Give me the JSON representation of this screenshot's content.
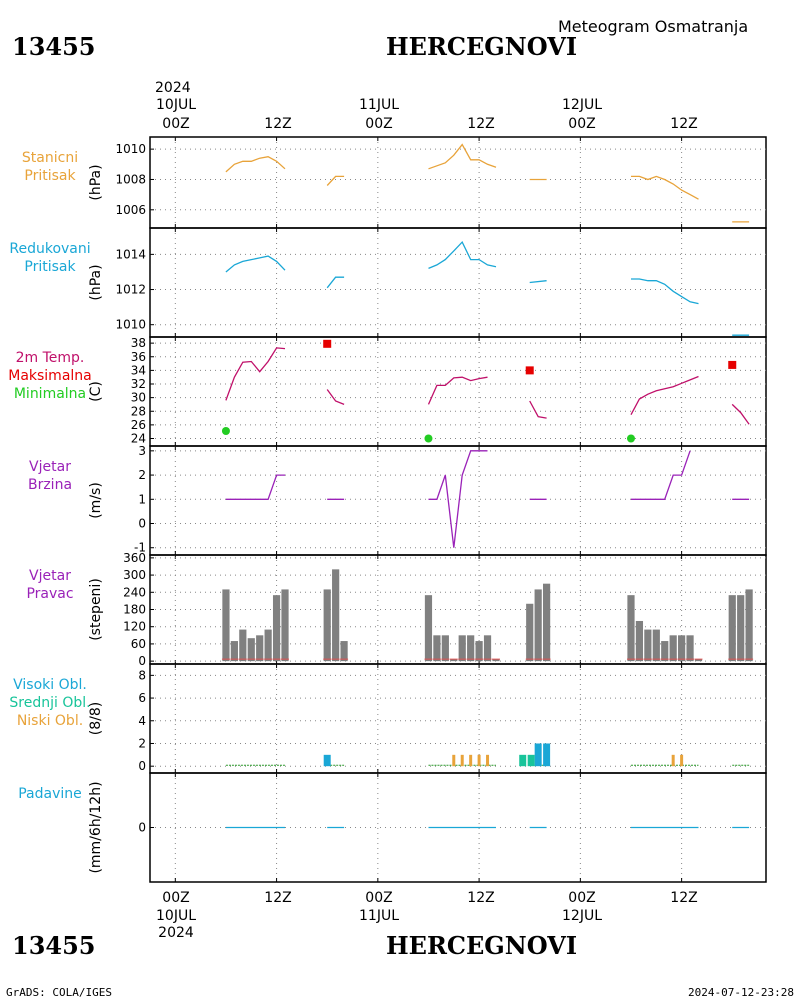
{
  "header": {
    "station_id": "13455",
    "station_name": "HERCEGNOVI",
    "subtitle": "Meteogram Osmatranja"
  },
  "time_axis": {
    "top": {
      "year": "2024",
      "dates": [
        "10JUL",
        "11JUL",
        "12JUL"
      ],
      "hours": [
        "00Z",
        "12Z",
        "00Z",
        "12Z",
        "00Z",
        "12Z"
      ]
    },
    "bottom": {
      "year": "2024",
      "dates": [
        "10JUL",
        "11JUL",
        "12JUL"
      ],
      "hours": [
        "00Z",
        "12Z",
        "00Z",
        "12Z",
        "00Z",
        "12Z"
      ]
    }
  },
  "footer": {
    "credit": "GrADS: COLA/IGES",
    "timestamp": "2024-07-12-23:28"
  },
  "colors": {
    "station_pressure": "#e8a33a",
    "reduced_pressure": "#1aa7d6",
    "tmax": "#e60000",
    "temp": "#c0106a",
    "tmin": "#22cc22",
    "wind": "#9a22b8",
    "bars": "#808080",
    "cloud_high": "#1aa7d6",
    "cloud_mid": "#18c49a",
    "cloud_low": "#e8a33a",
    "precip": "#1aa7d6"
  },
  "panels": [
    {
      "labels": [
        "Stanicni",
        "Pritisak"
      ],
      "unit": "(hPa)",
      "ticks": [
        "1010",
        "1008",
        "1006"
      ]
    },
    {
      "labels": [
        "Redukovani",
        "Pritisak"
      ],
      "unit": "(hPa)",
      "ticks": [
        "1014",
        "1012",
        "1010"
      ]
    },
    {
      "labels": [
        "2m Temp.",
        "Maksimalna",
        "Minimalna"
      ],
      "unit": "(C)",
      "ticks": [
        "38",
        "36",
        "34",
        "32",
        "30",
        "28",
        "26",
        "24"
      ]
    },
    {
      "labels": [
        "Vjetar",
        "Brzina"
      ],
      "unit": "(m/s)",
      "ticks": [
        "3",
        "2",
        "1",
        "0",
        "-1"
      ]
    },
    {
      "labels": [
        "Vjetar",
        "Pravac"
      ],
      "unit": "(stepeni)",
      "ticks": [
        "360",
        "300",
        "240",
        "180",
        "120",
        "60",
        "0"
      ]
    },
    {
      "labels": [
        "Visoki Obl.",
        "Srednji Obl.",
        "Niski Obl."
      ],
      "unit": "(8/8)",
      "ticks": [
        "8",
        "6",
        "4",
        "2",
        "0"
      ]
    },
    {
      "labels": [
        "Padavine"
      ],
      "unit": "(mm/6h/12h)",
      "ticks": [
        "0"
      ]
    }
  ],
  "chart_data": {
    "type": "line",
    "title": "Meteogram Osmatranja",
    "x_unit": "hours since 10JUL 00Z",
    "xlim": [
      -3,
      70
    ],
    "x_ticks": [
      0,
      12,
      24,
      36,
      48,
      60
    ],
    "station_pressure": {
      "ylim": [
        1004.8,
        1010.8
      ],
      "segments": [
        [
          [
            6,
            1008.5
          ],
          [
            7,
            1009.0
          ],
          [
            8,
            1009.2
          ],
          [
            9,
            1009.2
          ],
          [
            10,
            1009.4
          ],
          [
            11,
            1009.5
          ],
          [
            12,
            1009.2
          ],
          [
            13,
            1008.7
          ]
        ],
        [
          [
            18,
            1007.6
          ],
          [
            19,
            1008.2
          ],
          [
            20,
            1008.2
          ]
        ],
        [
          [
            30,
            1008.7
          ],
          [
            31,
            1008.9
          ],
          [
            32,
            1009.1
          ],
          [
            33,
            1009.6
          ],
          [
            34,
            1010.3
          ],
          [
            35,
            1009.3
          ],
          [
            36,
            1009.3
          ],
          [
            37,
            1009.0
          ],
          [
            38,
            1008.8
          ]
        ],
        [
          [
            42,
            1008.0
          ],
          [
            44,
            1008.0
          ]
        ],
        [
          [
            54,
            1008.2
          ],
          [
            55,
            1008.2
          ],
          [
            56,
            1008.0
          ],
          [
            57,
            1008.2
          ],
          [
            58,
            1008.0
          ],
          [
            59,
            1007.7
          ],
          [
            60,
            1007.3
          ],
          [
            61,
            1007.0
          ],
          [
            62,
            1006.7
          ]
        ],
        [
          [
            66,
            1005.2
          ],
          [
            68,
            1005.2
          ]
        ]
      ]
    },
    "reduced_pressure": {
      "ylim": [
        1009.3,
        1015.5
      ],
      "segments": [
        [
          [
            6,
            1013.0
          ],
          [
            7,
            1013.4
          ],
          [
            8,
            1013.6
          ],
          [
            9,
            1013.7
          ],
          [
            10,
            1013.8
          ],
          [
            11,
            1013.9
          ],
          [
            12,
            1013.6
          ],
          [
            13,
            1013.1
          ]
        ],
        [
          [
            18,
            1012.1
          ],
          [
            19,
            1012.7
          ],
          [
            20,
            1012.7
          ]
        ],
        [
          [
            30,
            1013.2
          ],
          [
            31,
            1013.4
          ],
          [
            32,
            1013.7
          ],
          [
            33,
            1014.2
          ],
          [
            34,
            1014.7
          ],
          [
            35,
            1013.7
          ],
          [
            36,
            1013.7
          ],
          [
            37,
            1013.4
          ],
          [
            38,
            1013.3
          ]
        ],
        [
          [
            42,
            1012.4
          ],
          [
            44,
            1012.5
          ]
        ],
        [
          [
            54,
            1012.6
          ],
          [
            55,
            1012.6
          ],
          [
            56,
            1012.5
          ],
          [
            57,
            1012.5
          ],
          [
            58,
            1012.3
          ],
          [
            59,
            1011.9
          ],
          [
            60,
            1011.6
          ],
          [
            61,
            1011.3
          ],
          [
            62,
            1011.2
          ]
        ],
        [
          [
            66,
            1009.4
          ],
          [
            68,
            1009.4
          ]
        ]
      ]
    },
    "temperature_2m": {
      "ylim": [
        22.9,
        38.9
      ],
      "segments": [
        [
          [
            6,
            29.6
          ],
          [
            7,
            33.0
          ],
          [
            8,
            35.2
          ],
          [
            9,
            35.3
          ],
          [
            10,
            33.8
          ],
          [
            11,
            35.3
          ],
          [
            12,
            37.3
          ],
          [
            13,
            37.2
          ]
        ],
        [
          [
            18,
            31.2
          ],
          [
            19,
            29.5
          ],
          [
            20,
            29.0
          ]
        ],
        [
          [
            30,
            29.0
          ],
          [
            31,
            31.8
          ],
          [
            32,
            31.8
          ],
          [
            33,
            32.9
          ],
          [
            34,
            33.0
          ],
          [
            35,
            32.5
          ],
          [
            36,
            32.8
          ],
          [
            37,
            33.0
          ]
        ],
        [
          [
            42,
            29.5
          ],
          [
            43,
            27.2
          ],
          [
            44,
            27.0
          ]
        ],
        [
          [
            54,
            27.5
          ],
          [
            55,
            29.8
          ],
          [
            56,
            30.5
          ],
          [
            57,
            31.0
          ],
          [
            58,
            31.3
          ],
          [
            59,
            31.6
          ],
          [
            60,
            32.1
          ],
          [
            61,
            32.6
          ],
          [
            62,
            33.1
          ]
        ],
        [
          [
            66,
            29.0
          ],
          [
            67,
            27.8
          ],
          [
            68,
            26.1
          ]
        ]
      ],
      "max_points": [
        [
          18,
          37.9
        ],
        [
          42,
          34.0
        ],
        [
          66,
          34.8
        ]
      ],
      "min_points": [
        [
          6,
          25.1
        ],
        [
          30,
          24.0
        ],
        [
          54,
          24.0
        ]
      ]
    },
    "wind_speed": {
      "ylim": [
        -1.3,
        3.2
      ],
      "segments": [
        [
          [
            6,
            1
          ],
          [
            11,
            1
          ],
          [
            12,
            2
          ],
          [
            13,
            2
          ]
        ],
        [
          [
            18,
            1
          ],
          [
            20,
            1
          ]
        ],
        [
          [
            30,
            1
          ],
          [
            31,
            1
          ],
          [
            32,
            2
          ],
          [
            33,
            -1
          ],
          [
            34,
            2
          ],
          [
            35,
            3
          ],
          [
            37,
            3
          ]
        ],
        [
          [
            42,
            1
          ],
          [
            44,
            1
          ]
        ],
        [
          [
            54,
            1
          ],
          [
            58,
            1
          ],
          [
            59,
            2
          ],
          [
            60,
            2
          ],
          [
            61,
            3
          ]
        ],
        [
          [
            66,
            1
          ],
          [
            68,
            1
          ]
        ]
      ]
    },
    "wind_direction": {
      "ylim": [
        -10,
        370
      ],
      "x": [
        6,
        7,
        8,
        9,
        10,
        11,
        12,
        13,
        18,
        19,
        20,
        30,
        31,
        32,
        33,
        34,
        35,
        36,
        37,
        38,
        42,
        43,
        44,
        54,
        55,
        56,
        57,
        58,
        59,
        60,
        61,
        62,
        66,
        67,
        68
      ],
      "values": [
        250,
        70,
        110,
        80,
        90,
        110,
        230,
        250,
        250,
        320,
        70,
        230,
        90,
        90,
        0,
        90,
        90,
        70,
        90,
        0,
        200,
        250,
        270,
        230,
        140,
        110,
        110,
        70,
        90,
        90,
        90,
        0,
        230,
        230,
        250
      ]
    },
    "clouds": {
      "ylim": [
        -0.6,
        9.0
      ],
      "trace_ranges": [
        [
          6,
          13
        ],
        [
          18,
          20
        ],
        [
          30,
          38
        ],
        [
          42,
          44
        ],
        [
          54,
          62
        ],
        [
          66,
          68
        ]
      ],
      "series": [
        {
          "name": "Visoki Obl.",
          "points": [
            [
              18,
              1
            ],
            [
              43,
              2
            ],
            [
              44,
              2
            ]
          ]
        },
        {
          "name": "Srednji Obl.",
          "points": [
            [
              42,
              1
            ],
            [
              43,
              1
            ]
          ]
        },
        {
          "name": "Niski Obl.",
          "points": [
            [
              33,
              1
            ],
            [
              34,
              1
            ],
            [
              35,
              1
            ],
            [
              36,
              1
            ],
            [
              37,
              1
            ],
            [
              59,
              1
            ],
            [
              60,
              1
            ]
          ]
        }
      ]
    },
    "precipitation": {
      "ylim": [
        -3,
        3
      ],
      "segments": [
        [
          [
            6,
            0
          ],
          [
            13,
            0
          ]
        ],
        [
          [
            18,
            0
          ],
          [
            20,
            0
          ]
        ],
        [
          [
            30,
            0
          ],
          [
            38,
            0
          ]
        ],
        [
          [
            42,
            0
          ],
          [
            44,
            0
          ]
        ],
        [
          [
            54,
            0
          ],
          [
            62,
            0
          ]
        ],
        [
          [
            66,
            0
          ],
          [
            68,
            0
          ]
        ]
      ]
    }
  }
}
